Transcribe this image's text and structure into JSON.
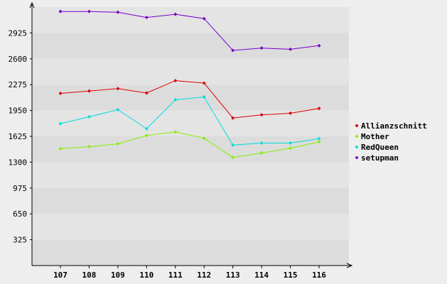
{
  "chart_data": {
    "type": "line",
    "categories": [
      "107",
      "108",
      "109",
      "110",
      "111",
      "112",
      "113",
      "114",
      "115",
      "116"
    ],
    "ylim": [
      0,
      3250
    ],
    "yticks": [
      325,
      650,
      975,
      1300,
      1625,
      1950,
      2275,
      2600,
      2925
    ],
    "ytick_labels": [
      "325",
      "650",
      "975",
      "1300",
      "1625",
      "1950",
      "2275",
      "2600",
      "2925"
    ],
    "grid": "horizontal bands",
    "legend_position": "right",
    "series": [
      {
        "name": "Allianzschnitt",
        "color": "#dd0000",
        "values": [
          2165,
          2195,
          2225,
          2170,
          2325,
          2295,
          1855,
          1895,
          1915,
          1975
        ]
      },
      {
        "name": "Mother",
        "color": "#88ee00",
        "values": [
          1470,
          1495,
          1530,
          1635,
          1680,
          1600,
          1360,
          1415,
          1475,
          1555
        ]
      },
      {
        "name": "RedQueen",
        "color": "#00dddd",
        "values": [
          1785,
          1870,
          1960,
          1720,
          2085,
          2120,
          1515,
          1540,
          1540,
          1595
        ]
      },
      {
        "name": "setupman",
        "color": "#7700cc",
        "values": [
          3195,
          3195,
          3185,
          3120,
          3160,
          3105,
          2705,
          2735,
          2720,
          2765
        ]
      }
    ]
  }
}
